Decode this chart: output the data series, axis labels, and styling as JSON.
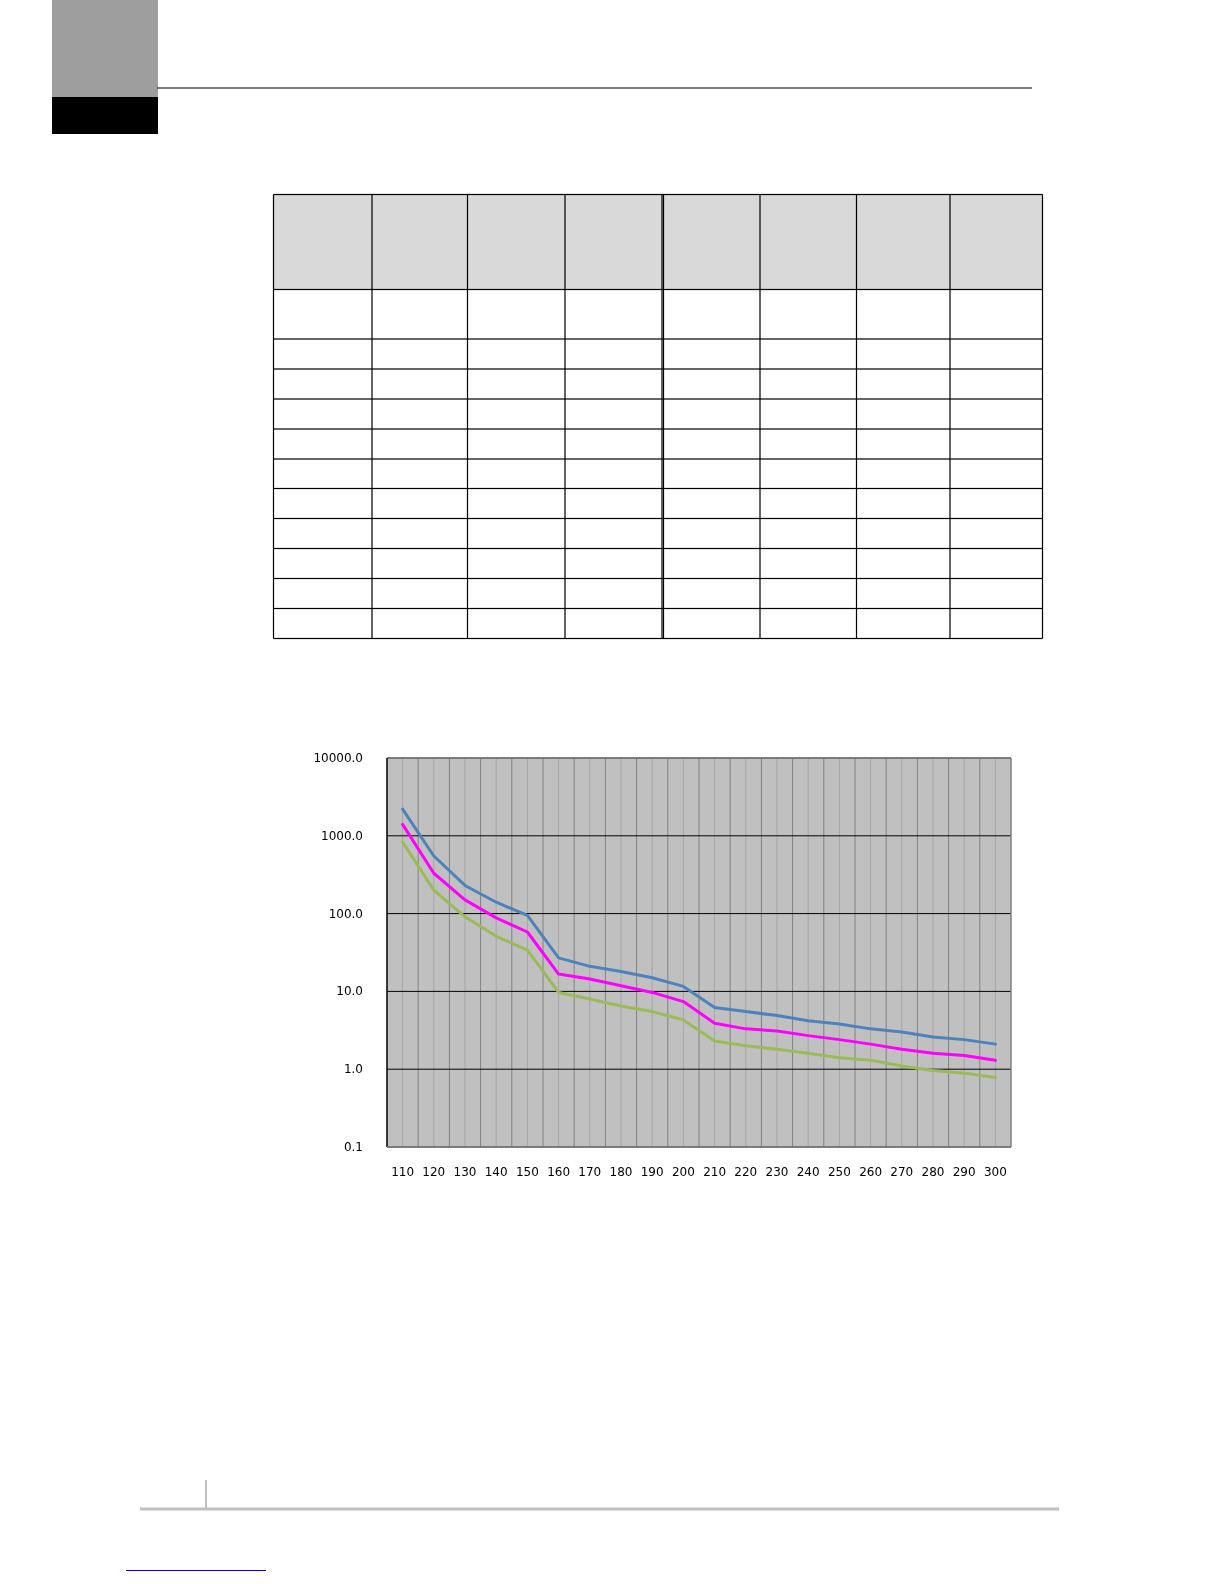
{
  "chart_data": {
    "type": "line",
    "categories": [
      "110",
      "120",
      "130",
      "140",
      "150",
      "160",
      "170",
      "180",
      "190",
      "200",
      "210",
      "220",
      "230",
      "240",
      "250",
      "260",
      "270",
      "280",
      "290",
      "300"
    ],
    "series": [
      {
        "color": "#4f81bd",
        "values": [
          2200,
          550,
          230,
          140,
          95,
          27,
          21,
          18,
          15,
          11.6,
          6.2,
          5.5,
          4.9,
          4.2,
          3.8,
          3.3,
          3.0,
          2.6,
          2.4,
          2.1
        ]
      },
      {
        "color": "#ff00ff",
        "values": [
          1400,
          330,
          150,
          88,
          58,
          16.7,
          14.4,
          11.8,
          9.7,
          7.4,
          3.9,
          3.3,
          3.1,
          2.7,
          2.4,
          2.1,
          1.8,
          1.6,
          1.5,
          1.3
        ]
      },
      {
        "color": "#9bbb59",
        "values": [
          830,
          200,
          91,
          51,
          34,
          9.7,
          8.0,
          6.5,
          5.5,
          4.3,
          2.3,
          2.0,
          1.8,
          1.6,
          1.4,
          1.3,
          1.1,
          0.96,
          0.89,
          0.78
        ]
      }
    ],
    "ylim": [
      0.1,
      10000
    ],
    "yticks": [
      {
        "value": 10000,
        "label": "10000.0"
      },
      {
        "value": 1000,
        "label": "1000.0"
      },
      {
        "value": 100,
        "label": "100.0"
      },
      {
        "value": 10,
        "label": "10.0"
      },
      {
        "value": 1,
        "label": "1.0"
      },
      0.1
    ],
    "log": true,
    "grid": true
  }
}
